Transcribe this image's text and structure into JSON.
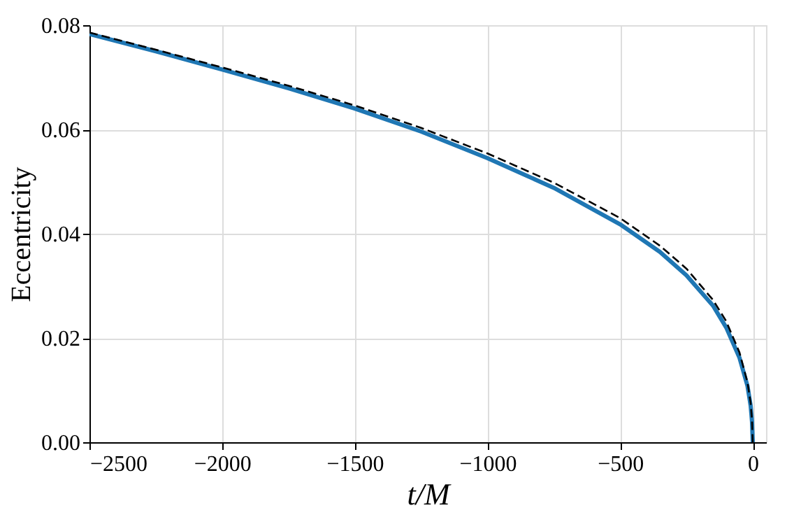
{
  "chart_data": {
    "type": "line",
    "xlabel": "t/M",
    "ylabel": "Eccentricity",
    "xlim": [
      -2500,
      50
    ],
    "ylim": [
      0,
      0.08
    ],
    "xticks": [
      {
        "value": -2500,
        "label": "−2500"
      },
      {
        "value": -2000,
        "label": "−2000"
      },
      {
        "value": -1500,
        "label": "−1500"
      },
      {
        "value": -1000,
        "label": "−1000"
      },
      {
        "value": -500,
        "label": "−500"
      },
      0
    ],
    "yticks": [
      {
        "value": 0,
        "label": "0.00"
      },
      {
        "value": 0.02,
        "label": "0.02"
      },
      {
        "value": 0.04,
        "label": "0.04"
      },
      {
        "value": 0.06,
        "label": "0.06"
      },
      {
        "value": 0.08,
        "label": "0.08"
      }
    ],
    "grid": true,
    "marker": "none",
    "series": [
      {
        "color": "#1f77b4",
        "line_style": "solid",
        "x": [
          -2500,
          -2250,
          -2000,
          -1750,
          -1500,
          -1250,
          -1000,
          -750,
          -500,
          -350,
          -250,
          -150,
          -100,
          -50,
          -20,
          -8,
          -3,
          0
        ],
        "values": [
          0.0783,
          0.075,
          0.0715,
          0.0679,
          0.064,
          0.0596,
          0.0545,
          0.0488,
          0.0418,
          0.0365,
          0.032,
          0.0262,
          0.022,
          0.0162,
          0.0108,
          0.007,
          0.004,
          0.0
        ]
      },
      {
        "color": "#000000",
        "line_style": "dashed",
        "x": [
          -2500,
          -2250,
          -2000,
          -1750,
          -1500,
          -1250,
          -1000,
          -750,
          -500,
          -350,
          -250,
          -150,
          -100,
          -50,
          -20,
          -8,
          -3,
          0
        ],
        "values": [
          0.0786,
          0.0753,
          0.0719,
          0.0684,
          0.0646,
          0.0603,
          0.0554,
          0.0498,
          0.043,
          0.0377,
          0.0333,
          0.0273,
          0.0232,
          0.0172,
          0.0115,
          0.0075,
          0.0043,
          0.0
        ]
      }
    ]
  }
}
